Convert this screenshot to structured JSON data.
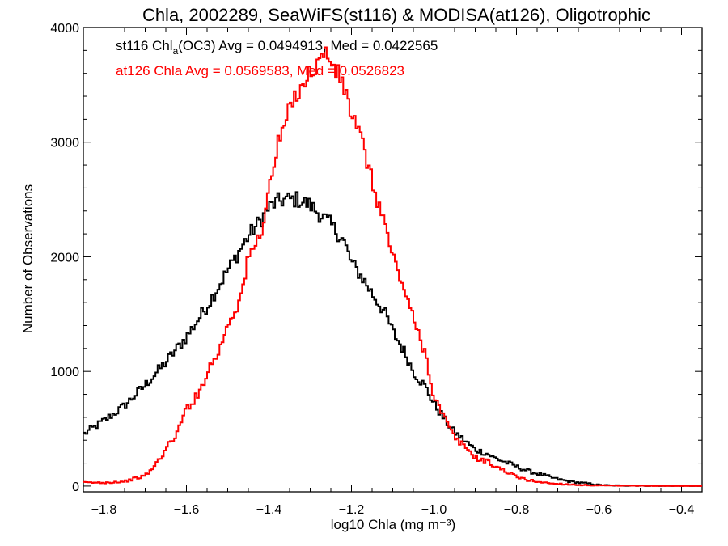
{
  "chart_data": {
    "type": "line",
    "title": "Chla, 2002289, SeaWiFS(st116) & MODISA(at126), Oligotrophic",
    "xlabel": "log10 Chla (mg m⁻³)",
    "ylabel": "Number of Observations",
    "xlim": [
      -1.85,
      -0.35
    ],
    "ylim": [
      -50,
      4000
    ],
    "xticks": [
      -1.8,
      -1.6,
      -1.4,
      -1.2,
      -1.0,
      -0.8,
      -0.6,
      -0.4
    ],
    "xtick_labels": [
      "−1.8",
      "−1.6",
      "−1.4",
      "−1.2",
      "−1.0",
      "−0.8",
      "−0.6",
      "−0.4"
    ],
    "yticks": [
      0,
      1000,
      2000,
      3000,
      4000
    ],
    "ytick_labels": [
      "0",
      "1000",
      "2000",
      "3000",
      "4000"
    ],
    "grid": false,
    "legend": [
      {
        "prefix": "st116 Chl",
        "sub": "a",
        "suffix": "(OC3) Avg = 0.0494913, Med = 0.0422565",
        "color": "#000000"
      },
      {
        "prefix": "at126 Chla Avg = 0.0569583, Med = 0.0526823",
        "sub": "",
        "suffix": "",
        "color": "#ff0000"
      }
    ],
    "series": [
      {
        "color": "#000000",
        "x": [
          -1.85,
          -1.8,
          -1.75,
          -1.7,
          -1.65,
          -1.6,
          -1.55,
          -1.5,
          -1.45,
          -1.42,
          -1.4,
          -1.38,
          -1.36,
          -1.33,
          -1.3,
          -1.27,
          -1.25,
          -1.22,
          -1.2,
          -1.17,
          -1.15,
          -1.12,
          -1.1,
          -1.07,
          -1.05,
          -1.02,
          -1.0,
          -0.97,
          -0.95,
          -0.92,
          -0.9,
          -0.87,
          -0.85,
          -0.82,
          -0.8,
          -0.77,
          -0.75,
          -0.72,
          -0.7,
          -0.67,
          -0.65,
          -0.62,
          -0.6,
          -0.57,
          -0.55,
          -0.5,
          -0.45,
          -0.4,
          -0.35
        ],
        "y": [
          450,
          570,
          700,
          880,
          1080,
          1300,
          1570,
          1880,
          2180,
          2320,
          2430,
          2480,
          2500,
          2500,
          2450,
          2350,
          2280,
          2150,
          1950,
          1800,
          1680,
          1520,
          1350,
          1160,
          1000,
          860,
          720,
          560,
          470,
          380,
          320,
          280,
          240,
          200,
          170,
          130,
          110,
          80,
          60,
          40,
          30,
          20,
          10,
          5,
          5,
          3,
          2,
          2,
          0
        ]
      },
      {
        "color": "#ff0000",
        "x": [
          -1.85,
          -1.8,
          -1.75,
          -1.7,
          -1.68,
          -1.65,
          -1.62,
          -1.6,
          -1.57,
          -1.55,
          -1.52,
          -1.5,
          -1.47,
          -1.45,
          -1.42,
          -1.4,
          -1.38,
          -1.35,
          -1.33,
          -1.3,
          -1.28,
          -1.27,
          -1.26,
          -1.25,
          -1.22,
          -1.2,
          -1.17,
          -1.15,
          -1.12,
          -1.1,
          -1.07,
          -1.05,
          -1.02,
          -1.0,
          -0.97,
          -0.95,
          -0.92,
          -0.9,
          -0.87,
          -0.85,
          -0.82,
          -0.8,
          -0.77,
          -0.75,
          -0.72,
          -0.7,
          -0.65,
          -0.6,
          -0.55,
          -0.5,
          -0.45,
          -0.4,
          -0.35
        ],
        "y": [
          30,
          30,
          40,
          90,
          160,
          320,
          480,
          680,
          800,
          1000,
          1180,
          1420,
          1620,
          1980,
          2200,
          2580,
          2950,
          3280,
          3450,
          3600,
          3700,
          3750,
          3780,
          3700,
          3500,
          3250,
          2950,
          2650,
          2300,
          2000,
          1700,
          1450,
          1150,
          780,
          560,
          420,
          330,
          250,
          210,
          170,
          120,
          80,
          50,
          40,
          25,
          20,
          10,
          5,
          3,
          2,
          1,
          0,
          0
        ]
      }
    ]
  }
}
